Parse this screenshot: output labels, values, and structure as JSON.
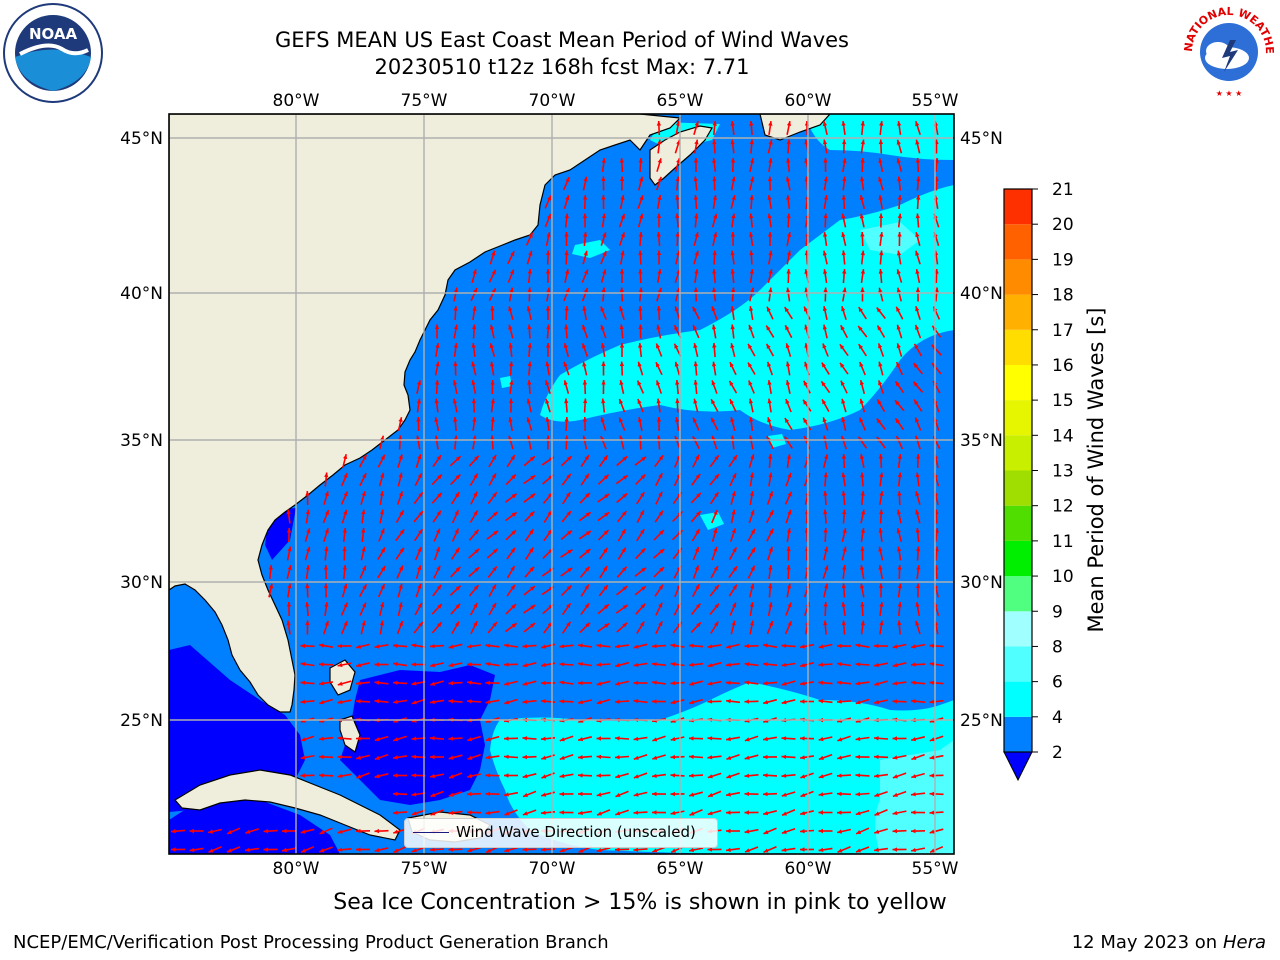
{
  "title": {
    "line1": "GEFS MEAN US East Coast Mean Period of Wind Waves",
    "line2": "20230510 t12z 168h fcst   Max: 7.71"
  },
  "logos": {
    "left": "noaa-logo",
    "right": "national-weather-service-logo",
    "right_text": "NATIONAL WEATHER SERVICE"
  },
  "map": {
    "lon_labels": [
      "80°W",
      "75°W",
      "70°W",
      "65°W",
      "60°W",
      "55°W"
    ],
    "lat_labels": [
      "45°N",
      "40°N",
      "35°N",
      "30°N",
      "25°N"
    ],
    "legend_label": "Wind Wave Direction (unscaled)",
    "arrow_color": "#ff0000",
    "land_color": "#efeedc",
    "grid_color": "#b0b0b0"
  },
  "colorbar": {
    "title": "Mean Period of Wind Waves [s]",
    "ticks": [
      "2",
      "4",
      "6",
      "8",
      "9",
      "10",
      "11",
      "12",
      "13",
      "14",
      "15",
      "16",
      "17",
      "18",
      "19",
      "20",
      "21"
    ],
    "colors": [
      "#0080ff",
      "#00ffff",
      "#50ffff",
      "#a0ffff",
      "#50ff80",
      "#00ee00",
      "#50dd00",
      "#a0dd00",
      "#c8ee00",
      "#e6f500",
      "#ffff00",
      "#ffdd00",
      "#ffb000",
      "#ff8c00",
      "#ff6000",
      "#ff3000",
      "#ff0000"
    ],
    "under_color": "#0000ff"
  },
  "footer": {
    "note": "Sea Ice Concentration > 15% is shown in pink to yellow",
    "credit": "NCEP/EMC/Verification Post Processing Product Generation Branch",
    "date": "12 May 2023 on",
    "host": "Hera"
  }
}
